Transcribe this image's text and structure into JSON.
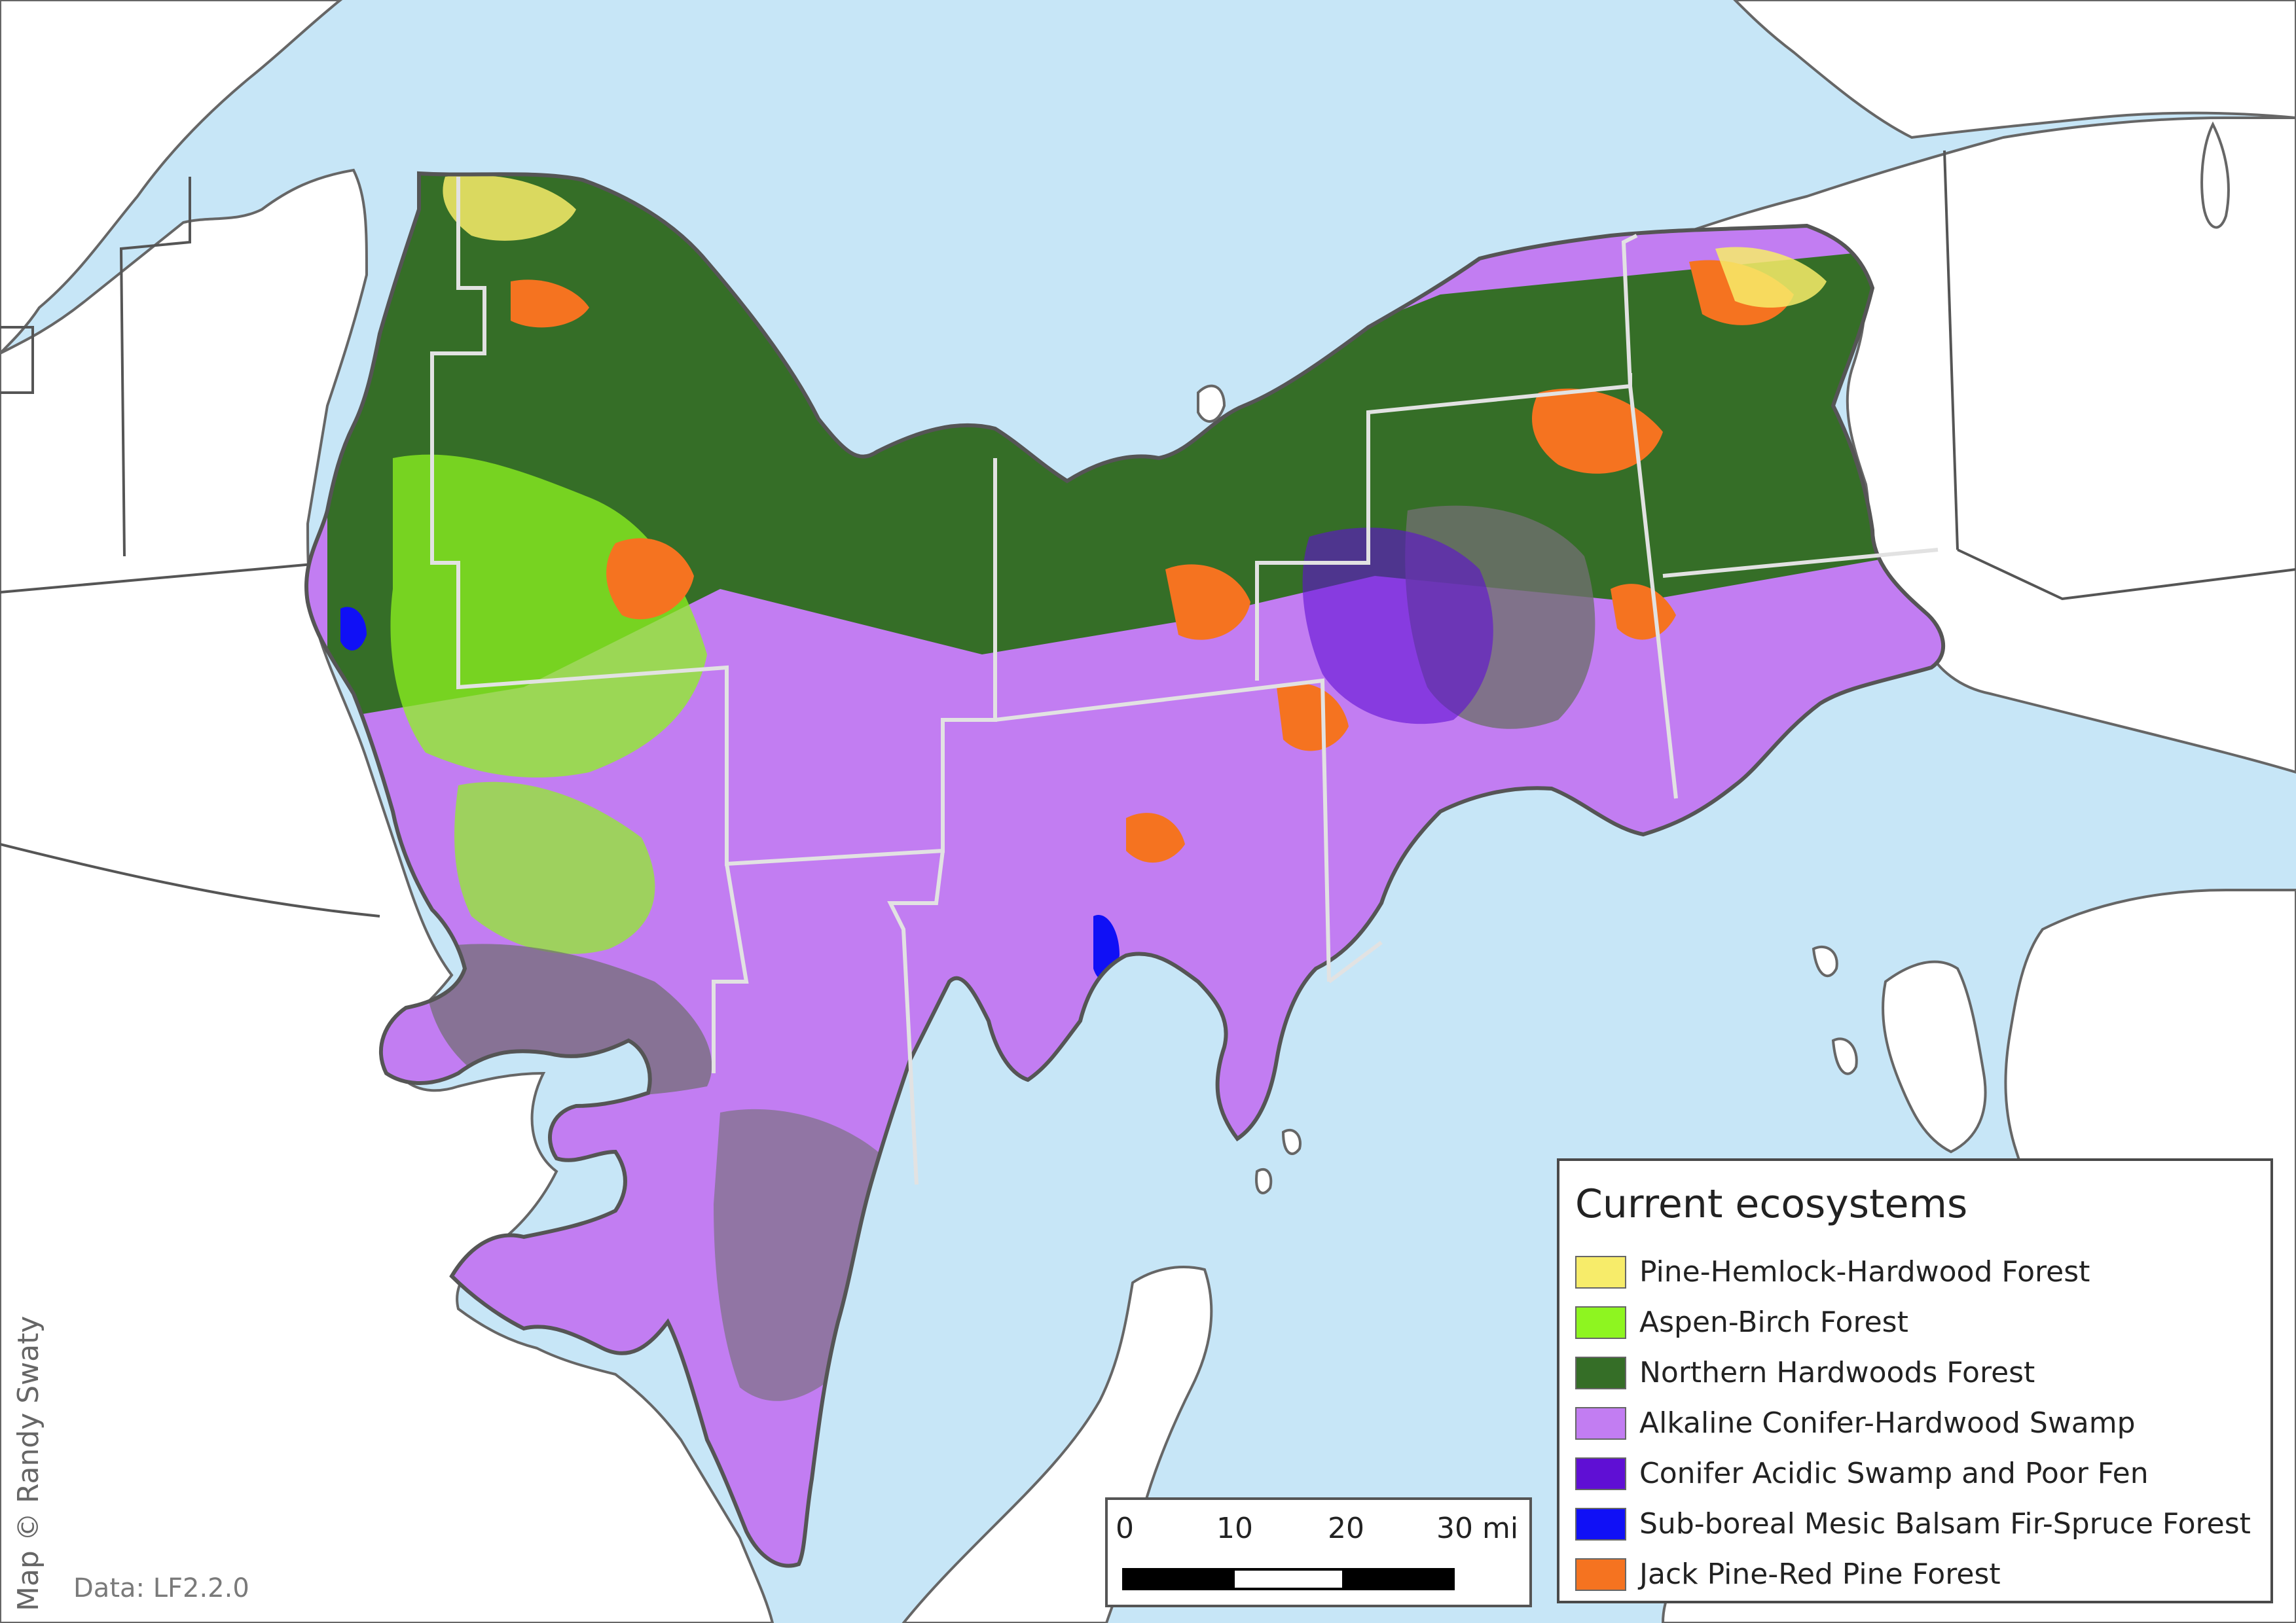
{
  "legend": {
    "title": "Current ecosystems",
    "items": [
      {
        "label": "Pine-Hemlock-Hardwood Forest",
        "color": "#f7ec6a"
      },
      {
        "label": "Aspen-Birch Forest",
        "color": "#8ef520"
      },
      {
        "label": "Northern Hardwoods Forest",
        "color": "#356e27"
      },
      {
        "label": "Alkaline Conifer-Hardwood Swamp",
        "color": "#c27df2"
      },
      {
        "label": "Conifer Acidic Swamp and Poor Fen",
        "color": "#5f0fd4"
      },
      {
        "label": "Sub-boreal Mesic Balsam Fir-Spruce Forest",
        "color": "#1010f6"
      },
      {
        "label": "Jack Pine-Red Pine Forest",
        "color": "#f57320"
      }
    ]
  },
  "scale_bar": {
    "ticks": [
      "0",
      "10",
      "20",
      "30 mi"
    ]
  },
  "credit": "Map © Randy Swaty",
  "data_source": "Data: LF2.2.0",
  "colors": {
    "water": "#c7e6f7",
    "land": "#ffffff",
    "non_forest": "#6f6f6f",
    "boundary": "#666666",
    "county_line": "#e2e2e2"
  }
}
